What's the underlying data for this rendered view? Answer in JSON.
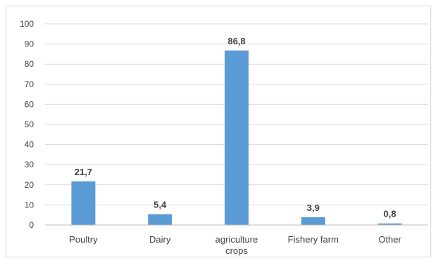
{
  "chart_data": {
    "type": "bar",
    "categories": [
      "Poultry",
      "Dairy",
      "agriculture crops",
      "Fishery farm",
      "Other"
    ],
    "category_lines": [
      [
        "Poultry"
      ],
      [
        "Dairy"
      ],
      [
        "agriculture",
        "crops"
      ],
      [
        "Fishery farm"
      ],
      [
        "Other"
      ]
    ],
    "values": [
      21.7,
      5.4,
      86.8,
      3.9,
      0.8
    ],
    "data_labels": [
      "21,7",
      "5,4",
      "86,8",
      "3,9",
      "0,8"
    ],
    "yticks": [
      0,
      10,
      20,
      30,
      40,
      50,
      60,
      70,
      80,
      90,
      100
    ],
    "ylim": [
      0,
      100
    ],
    "grid": true,
    "legend": "none",
    "bar_color": "#5b9bd5"
  }
}
